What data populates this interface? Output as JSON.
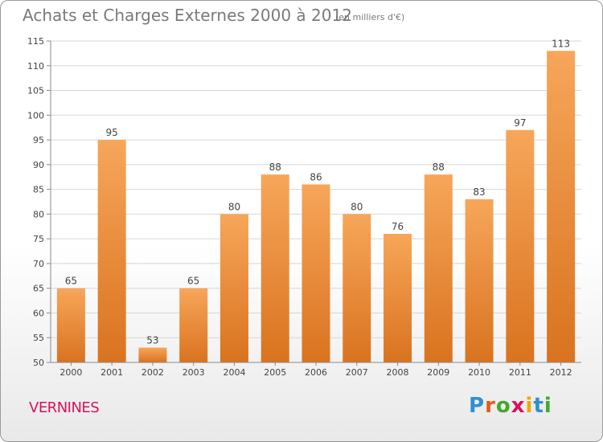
{
  "header": {
    "title": "Achats et Charges Externes 2000 à 2012",
    "subtitle": "(en milliers d'€)"
  },
  "footer": {
    "place": "VERNINES",
    "logo_letters": [
      "P",
      "r",
      "o",
      "x",
      "i",
      "t",
      "i"
    ],
    "logo_colors": [
      "#2e8fd6",
      "#e8591a",
      "#43a82f",
      "#d4145a",
      "#f0a500",
      "#2e8fd6",
      "#43a82f"
    ]
  },
  "colors": {
    "bar_top": "#f7a65a",
    "bar_bottom": "#d9731f",
    "grid": "#d6d6d6",
    "axis": "#8a8a8a",
    "label": "#444444"
  },
  "chart_data": {
    "type": "bar",
    "title": "Achats et Charges Externes 2000 à 2012",
    "subtitle": "(en milliers d'€)",
    "categories": [
      "2000",
      "2001",
      "2002",
      "2003",
      "2004",
      "2005",
      "2006",
      "2007",
      "2008",
      "2009",
      "2010",
      "2011",
      "2012"
    ],
    "values": [
      65,
      95,
      53,
      65,
      80,
      88,
      86,
      80,
      76,
      88,
      83,
      97,
      113
    ],
    "ylim": [
      50,
      115
    ],
    "yticks": [
      50,
      55,
      60,
      65,
      70,
      75,
      80,
      85,
      90,
      95,
      100,
      105,
      110,
      115
    ],
    "grid": true,
    "legend": "none",
    "data_labels": true
  }
}
